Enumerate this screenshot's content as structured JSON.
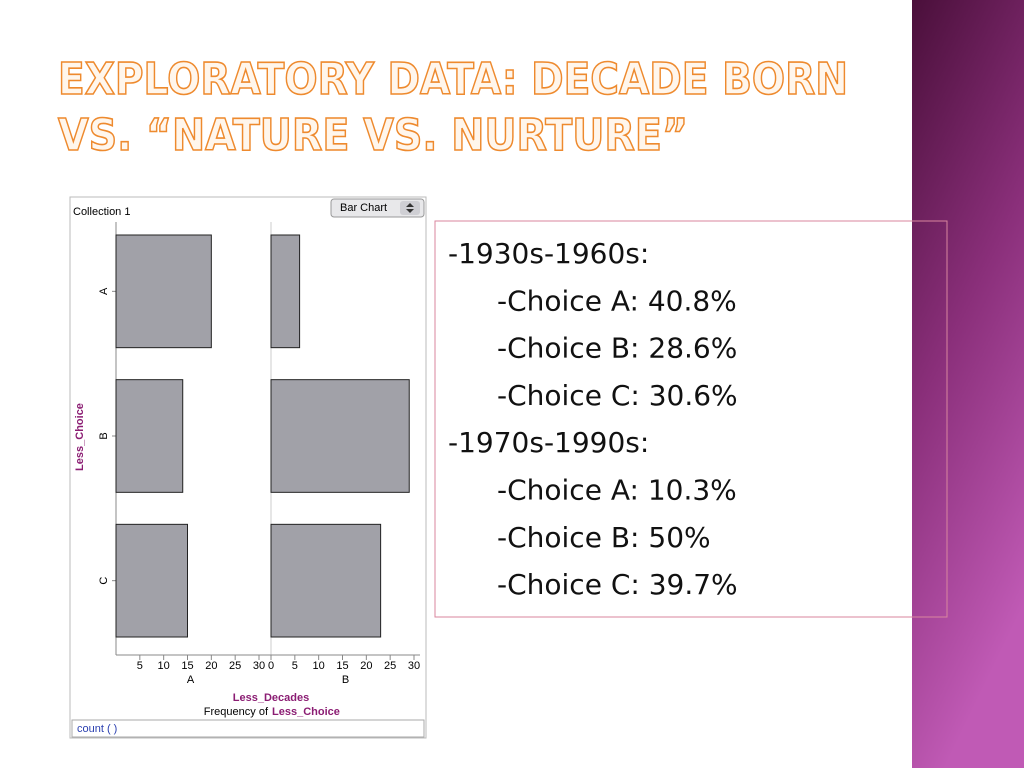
{
  "slide": {
    "title_lines": [
      "EXPLORATORY DATA: DECADE BORN",
      "VS. “NATURE VS. NURTURE”"
    ]
  },
  "chart_data": {
    "type": "bar",
    "orientation": "horizontal",
    "title": "Collection 1",
    "control": "Bar Chart",
    "categories": [
      "A",
      "B",
      "C"
    ],
    "y_label": "Less_Choice",
    "x_label": "Less_Decades",
    "caption_prefix": "Frequency of",
    "caption_variable": "Less_Choice",
    "footer": "count (  )",
    "color": "#a1a1a8",
    "panels": [
      {
        "name": "A",
        "values": [
          20,
          14,
          15
        ],
        "xlim": [
          0,
          30
        ],
        "xticks": [
          5,
          10,
          15,
          20,
          25,
          30
        ]
      },
      {
        "name": "B",
        "values": [
          6,
          29,
          23
        ],
        "xlim": [
          0,
          30
        ],
        "xticks": [
          0,
          5,
          10,
          15,
          20,
          25,
          30
        ]
      }
    ]
  },
  "text_box": {
    "groups": [
      {
        "heading": "-1930s-1960s:",
        "items": [
          "-Choice A: 40.8%",
          "-Choice B: 28.6%",
          "-Choice C: 30.6%"
        ]
      },
      {
        "heading": "-1970s-1990s:",
        "items": [
          "-Choice A: 10.3%",
          "-Choice B: 50%",
          "-Choice C: 39.7%"
        ]
      }
    ]
  }
}
